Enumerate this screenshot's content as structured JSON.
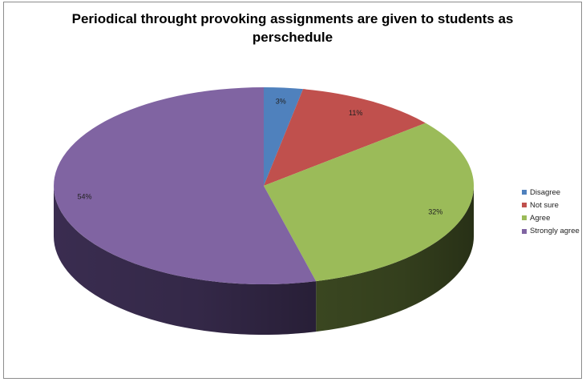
{
  "chart_data": {
    "type": "pie",
    "title": "Periodical throught provoking assignments are given to students as perschedule",
    "categories": [
      "Disagree",
      "Not sure",
      "Agree",
      "Strongly agree"
    ],
    "values": [
      3,
      11,
      32,
      54
    ],
    "labels": [
      "3%",
      "11%",
      "32%",
      "54%"
    ],
    "colors": [
      "#4f81bd",
      "#c0504d",
      "#9bbb59",
      "#8064a2"
    ],
    "side_colors": [
      "#2c4d75",
      "#772c2a",
      "#3d4a22",
      "#3d2f54"
    ],
    "legend_position": "right",
    "style": "3d"
  }
}
